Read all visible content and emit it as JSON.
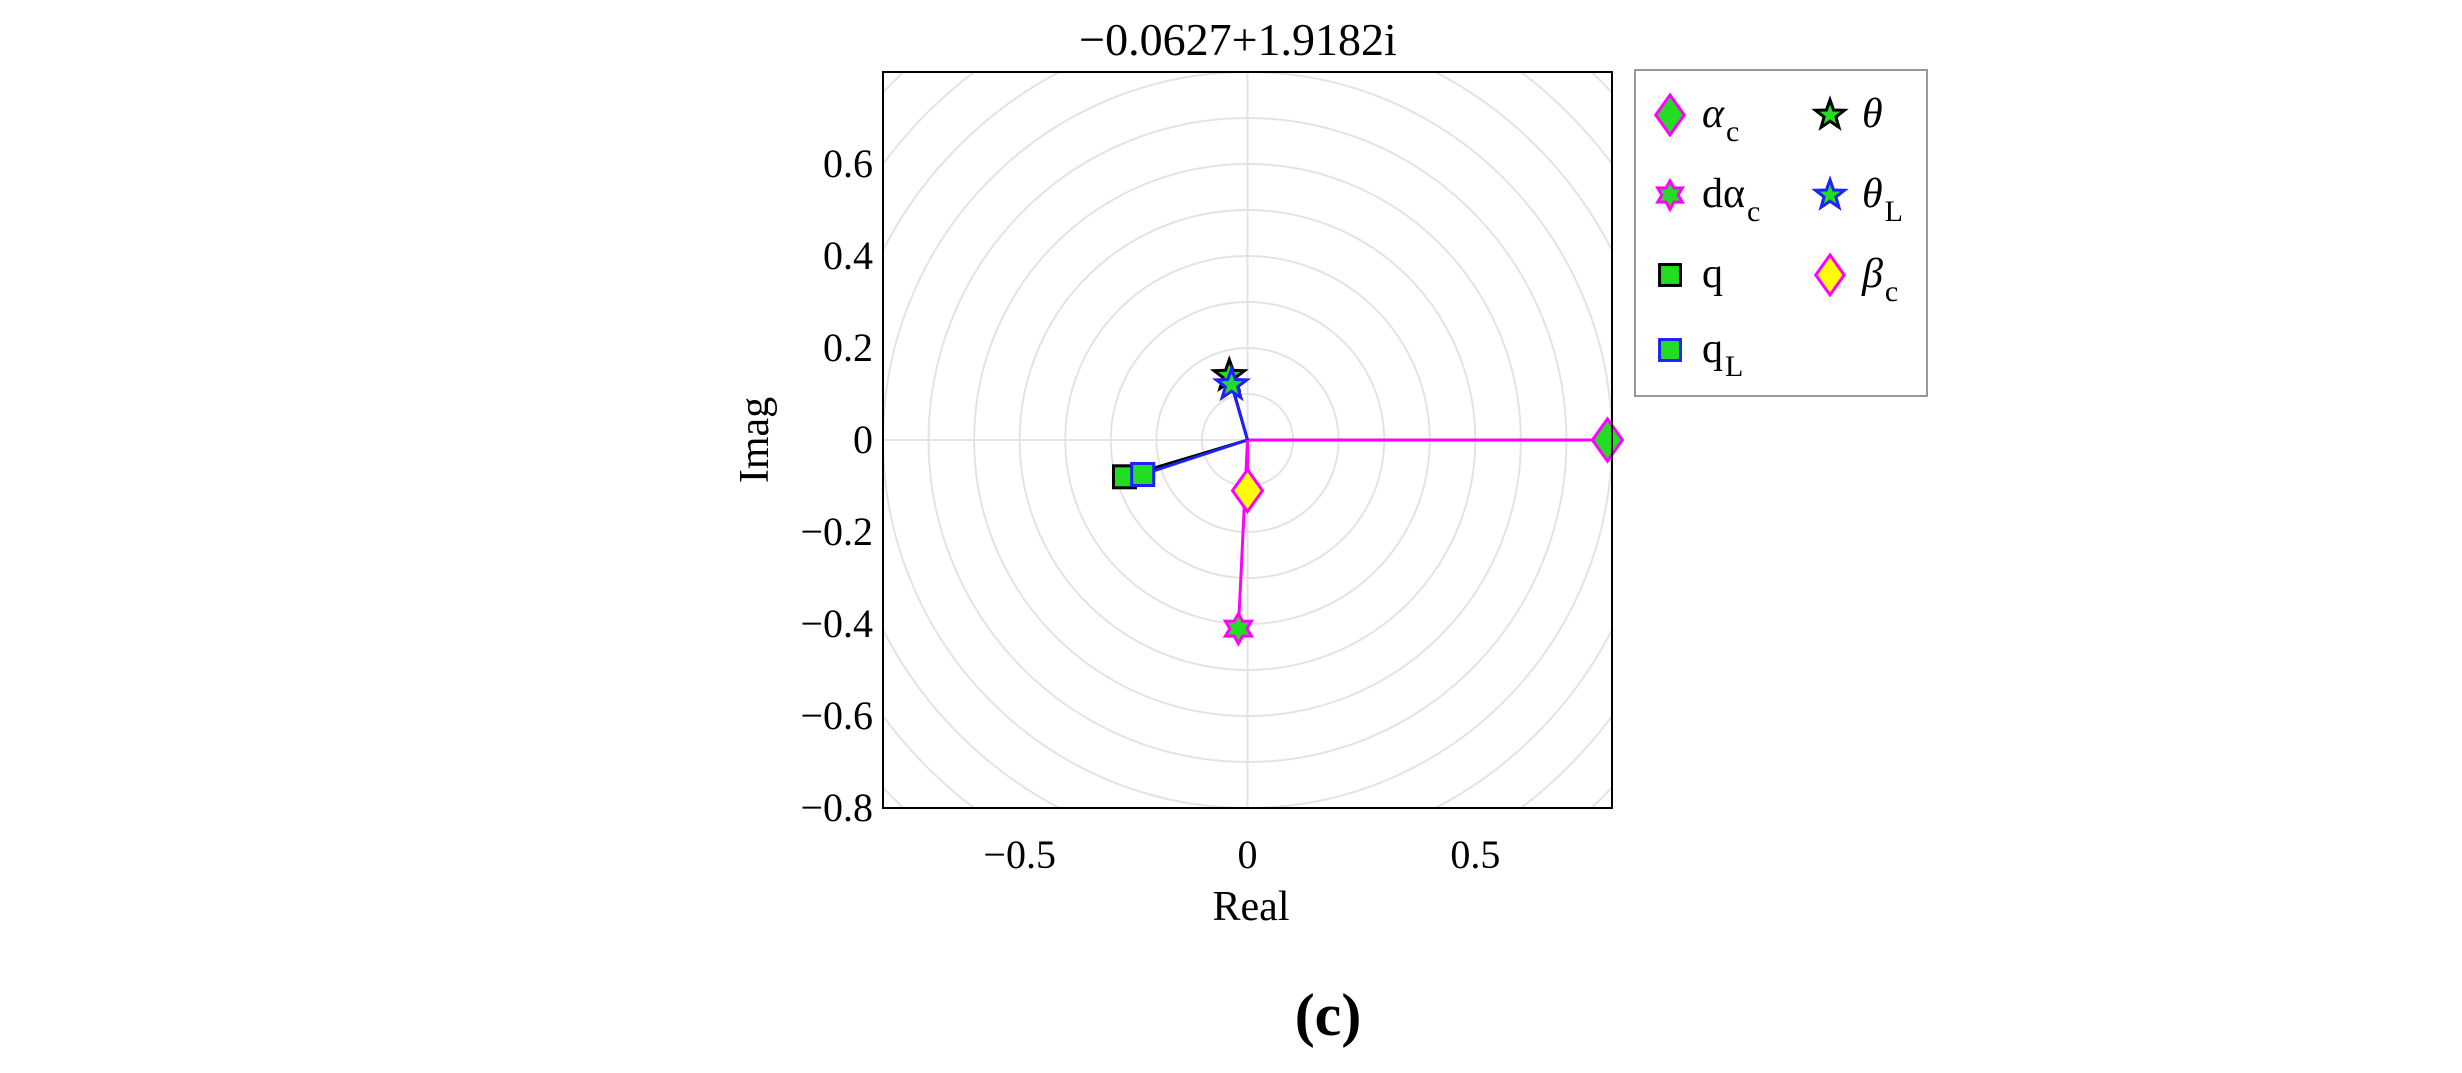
{
  "chart_data": {
    "type": "scatter",
    "subtype": "compass",
    "title": "−0.0627+1.9182i",
    "xlabel": "Real",
    "ylabel": "Imag",
    "xlim": [
      -0.8,
      0.8
    ],
    "ylim": [
      -0.8,
      0.8
    ],
    "xticks": [
      -0.5,
      0,
      0.5
    ],
    "xtick_labels": [
      "−0.5",
      "0",
      "0.5"
    ],
    "yticks": [
      0.6,
      0.4,
      0.2,
      0,
      -0.2,
      -0.4,
      -0.6,
      -0.8
    ],
    "ytick_labels": [
      "0.6",
      "0.4",
      "0.2",
      "0",
      "−0.2",
      "−0.4",
      "−0.6",
      "−0.8"
    ],
    "grid": "polar",
    "ring_step": 0.1,
    "series": [
      {
        "name": "alpha_c",
        "legend_main": "α",
        "legend_sub": "c",
        "italic": true,
        "x": 0.79,
        "y": 0.0,
        "marker": "diamond",
        "fill": "#22dd22",
        "edge": "#ff00ff",
        "line": "#ff00ff"
      },
      {
        "name": "d_alpha_c",
        "legend_main": "dα",
        "legend_sub": "c",
        "italic": false,
        "x": -0.02,
        "y": -0.41,
        "marker": "hexagram",
        "fill": "#22dd22",
        "edge": "#ff00ff",
        "line": "#ff00ff"
      },
      {
        "name": "q",
        "legend_main": "q",
        "legend_sub": "",
        "italic": false,
        "x": -0.27,
        "y": -0.08,
        "marker": "square",
        "fill": "#22dd22",
        "edge": "#000000",
        "line": "#000000"
      },
      {
        "name": "q_L",
        "legend_main": "q",
        "legend_sub": "L",
        "italic": false,
        "x": -0.23,
        "y": -0.075,
        "marker": "square",
        "fill": "#22dd22",
        "edge": "#1f1fff",
        "line": "#1f1fff"
      },
      {
        "name": "theta",
        "legend_main": "θ",
        "legend_sub": "",
        "italic": true,
        "x": -0.04,
        "y": 0.14,
        "marker": "pentagram",
        "fill": "#22dd22",
        "edge": "#000000",
        "line": "#000000"
      },
      {
        "name": "theta_L",
        "legend_main": "θ",
        "legend_sub": "L",
        "italic": true,
        "x": -0.035,
        "y": 0.12,
        "marker": "pentagram",
        "fill": "#22dd22",
        "edge": "#1f1fff",
        "line": "#1f1fff"
      },
      {
        "name": "beta_c",
        "legend_main": "β",
        "legend_sub": "c",
        "italic": true,
        "x": 0.0,
        "y": -0.11,
        "marker": "diamond",
        "fill": "#ffff00",
        "edge": "#ff00ff",
        "line": "#ff00ff"
      }
    ],
    "legend_position": "right-outside"
  },
  "caption": "(c)"
}
